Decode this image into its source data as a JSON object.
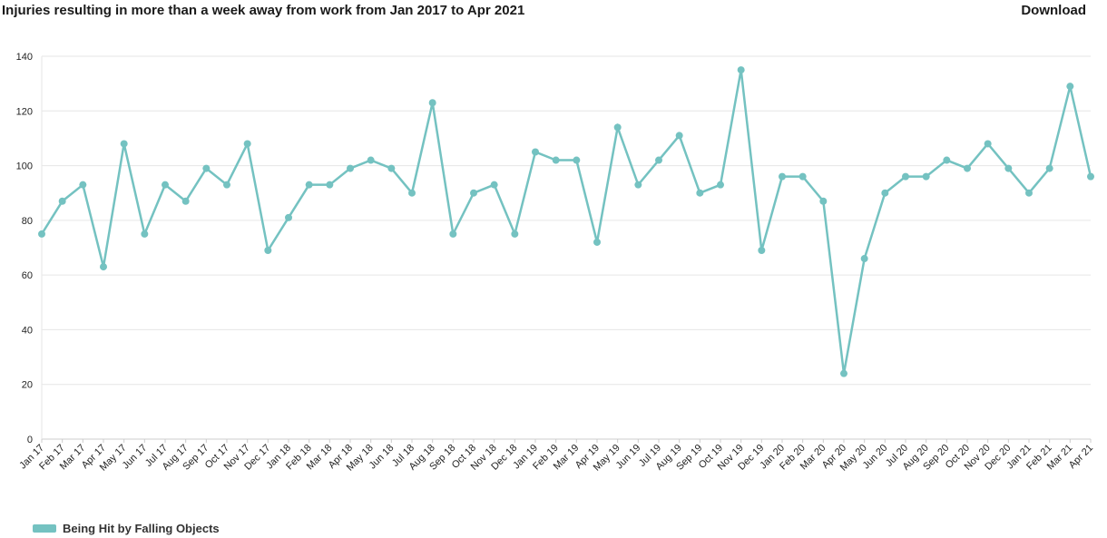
{
  "header": {
    "title": "Injuries resulting in more than a week away from work from Jan 2017 to Apr 2021",
    "download_label": "Download"
  },
  "colors": {
    "series": "#74c2c1",
    "grid": "#e6e6e6",
    "axis": "#cccccc"
  },
  "chart_data": {
    "type": "line",
    "title": "Injuries resulting in more than a week away from work from Jan 2017 to Apr 2021",
    "xlabel": "",
    "ylabel": "",
    "ylim": [
      0,
      140
    ],
    "yticks": [
      0,
      20,
      40,
      60,
      80,
      100,
      120,
      140
    ],
    "grid": true,
    "legend_position": "bottom-left",
    "categories": [
      "Jan 17",
      "Feb 17",
      "Mar 17",
      "Apr 17",
      "May 17",
      "Jun 17",
      "Jul 17",
      "Aug 17",
      "Sep 17",
      "Oct 17",
      "Nov 17",
      "Dec 17",
      "Jan 18",
      "Feb 18",
      "Mar 18",
      "Apr 18",
      "May 18",
      "Jun 18",
      "Jul 18",
      "Aug 18",
      "Sep 18",
      "Oct 18",
      "Nov 18",
      "Dec 18",
      "Jan 19",
      "Feb 19",
      "Mar 19",
      "Apr 19",
      "May 19",
      "Jun 19",
      "Jul 19",
      "Aug 19",
      "Sep 19",
      "Oct 19",
      "Nov 19",
      "Dec 19",
      "Jan 20",
      "Feb 20",
      "Mar 20",
      "Apr 20",
      "May 20",
      "Jun 20",
      "Jul 20",
      "Aug 20",
      "Sep 20",
      "Oct 20",
      "Nov 20",
      "Dec 20",
      "Jan 21",
      "Feb 21",
      "Mar 21",
      "Apr 21"
    ],
    "series": [
      {
        "name": "Being Hit by Falling Objects",
        "values": [
          75,
          87,
          93,
          63,
          108,
          75,
          93,
          87,
          99,
          93,
          108,
          69,
          81,
          93,
          93,
          99,
          102,
          99,
          90,
          123,
          75,
          90,
          93,
          75,
          105,
          102,
          102,
          72,
          114,
          93,
          102,
          111,
          90,
          93,
          135,
          69,
          96,
          96,
          87,
          24,
          66,
          90,
          96,
          96,
          102,
          99,
          108,
          99,
          90,
          99,
          129,
          96
        ]
      }
    ]
  }
}
